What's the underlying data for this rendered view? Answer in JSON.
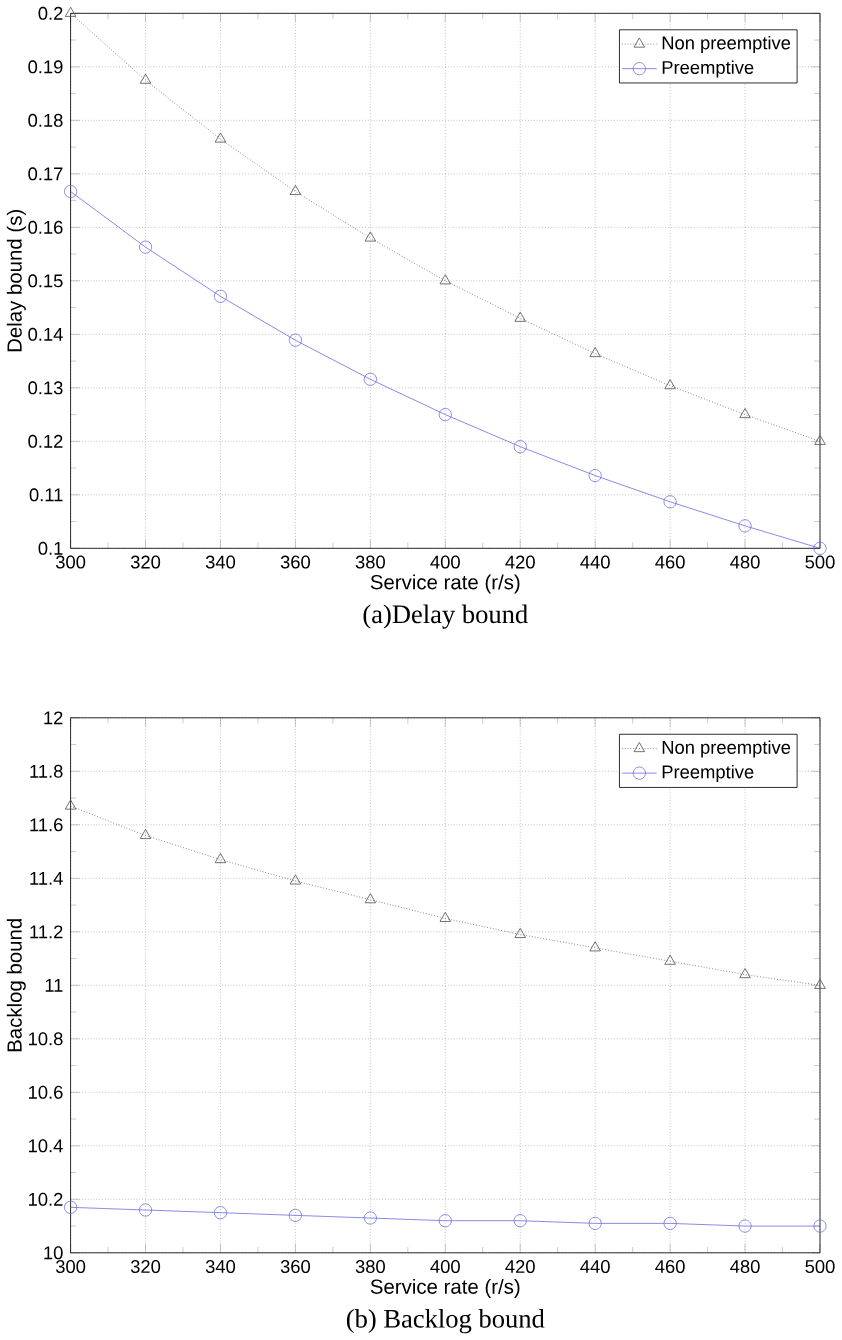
{
  "chart_data": [
    {
      "type": "line",
      "title": "(a)Delay bound",
      "xlabel": "Service rate (r/s)",
      "ylabel": "Delay bound (s)",
      "x": [
        300,
        320,
        340,
        360,
        380,
        400,
        420,
        440,
        460,
        480,
        500
      ],
      "series": [
        {
          "name": "Non preemptive",
          "color": "#555555",
          "marker": "triangle",
          "line_style": "dotted",
          "values": [
            0.2,
            0.1875,
            0.1765,
            0.1667,
            0.158,
            0.15,
            0.143,
            0.1364,
            0.1304,
            0.125,
            0.12
          ]
        },
        {
          "name": "Preemptive",
          "color": "#6f6fe0",
          "marker": "circle",
          "line_style": "solid",
          "values": [
            0.1667,
            0.1563,
            0.1471,
            0.1389,
            0.1316,
            0.125,
            0.119,
            0.1136,
            0.1087,
            0.1042,
            0.1
          ]
        }
      ],
      "xlim": [
        300,
        500
      ],
      "xticks": [
        300,
        320,
        340,
        360,
        380,
        400,
        420,
        440,
        460,
        480,
        500
      ],
      "ylim": [
        0.1,
        0.2
      ],
      "yticks": [
        0.1,
        0.11,
        0.12,
        0.13,
        0.14,
        0.15,
        0.16,
        0.17,
        0.18,
        0.19,
        0.2
      ],
      "grid": true,
      "legend": "top right"
    },
    {
      "type": "line",
      "title": "(b) Backlog bound",
      "xlabel": "Service rate (r/s)",
      "ylabel": "Backlog bound",
      "x": [
        300,
        320,
        340,
        360,
        380,
        400,
        420,
        440,
        460,
        480,
        500
      ],
      "series": [
        {
          "name": "Non preemptive",
          "color": "#555555",
          "marker": "triangle",
          "line_style": "dotted",
          "values": [
            11.67,
            11.56,
            11.47,
            11.39,
            11.32,
            11.25,
            11.19,
            11.14,
            11.09,
            11.04,
            11.0
          ]
        },
        {
          "name": "Preemptive",
          "color": "#6f6fe0",
          "marker": "circle",
          "line_style": "solid",
          "values": [
            10.17,
            10.16,
            10.15,
            10.14,
            10.13,
            10.12,
            10.12,
            10.11,
            10.11,
            10.1,
            10.1
          ]
        }
      ],
      "xlim": [
        300,
        500
      ],
      "xticks": [
        300,
        320,
        340,
        360,
        380,
        400,
        420,
        440,
        460,
        480,
        500
      ],
      "ylim": [
        10,
        12
      ],
      "yticks": [
        10,
        10.2,
        10.4,
        10.6,
        10.8,
        11,
        11.2,
        11.4,
        11.6,
        11.8,
        12
      ],
      "grid": true,
      "legend": "top right"
    }
  ]
}
